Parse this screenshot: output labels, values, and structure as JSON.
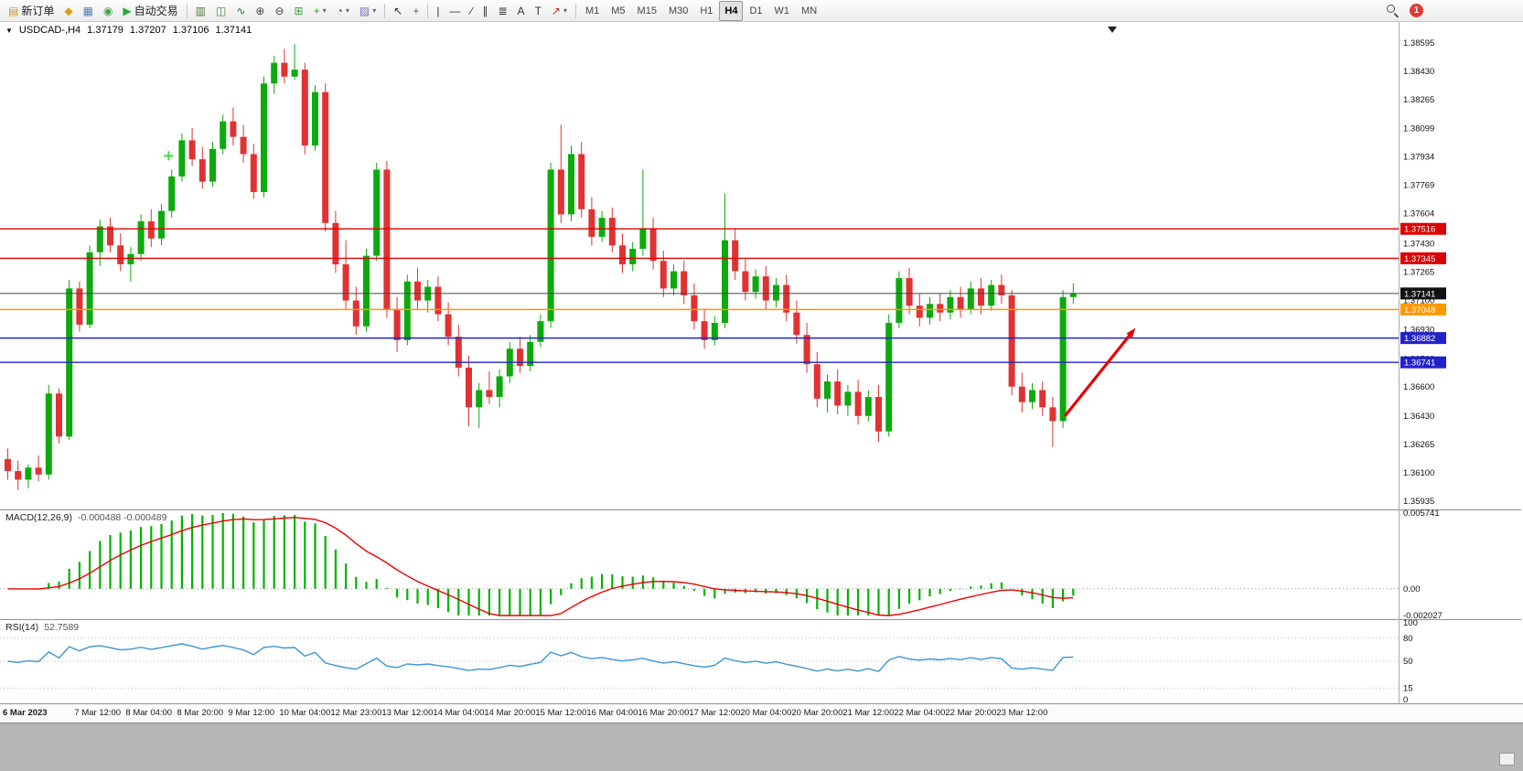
{
  "toolbar": {
    "notification_count": "1",
    "timeframes": [
      "M1",
      "M5",
      "M15",
      "M30",
      "H1",
      "H4",
      "D1",
      "W1",
      "MN"
    ],
    "active_timeframe": "H4",
    "items": [
      {
        "name": "new-order-button",
        "glyph": "▤",
        "glyph_color": "#c89830",
        "label": "新订单"
      },
      {
        "name": "market-watch-button",
        "glyph": "◆",
        "glyph_color": "#d4a017"
      },
      {
        "name": "data-window-button",
        "glyph": "▦",
        "glyph_color": "#5a7fb5"
      },
      {
        "name": "navigator-button",
        "glyph": "◉",
        "glyph_color": "#3fa33f"
      },
      {
        "name": "auto-trading-button",
        "glyph": "▶",
        "glyph_color": "#2fa82f",
        "label": "自动交易"
      },
      {
        "sep": true
      },
      {
        "name": "bar-chart-button",
        "glyph": "▥",
        "glyph_color": "#55772f"
      },
      {
        "name": "candlestick-chart-button",
        "glyph": "◫",
        "glyph_color": "#4c7a2f"
      },
      {
        "name": "line-chart-button",
        "glyph": "∿",
        "glyph_color": "#2f6f2f"
      },
      {
        "name": "zoom-in-button",
        "glyph": "⊕",
        "glyph_color": "#444444"
      },
      {
        "name": "zoom-out-button",
        "glyph": "⊖",
        "glyph_color": "#444444"
      },
      {
        "name": "tile-windows-button",
        "glyph": "⊞",
        "glyph_color": "#3fa33f"
      },
      {
        "name": "indicators-button",
        "glyph": "+",
        "glyph_color": "#2fa82f",
        "dropdown": true
      },
      {
        "name": "periods-button",
        "glyph": "◔",
        "glyph_color": "#445577",
        "dropdown": true
      },
      {
        "name": "templates-button",
        "glyph": "▨",
        "glyph_color": "#7a6fae",
        "dropdown": true
      },
      {
        "sep": true
      },
      {
        "name": "cursor-button",
        "glyph": "↖",
        "glyph_color": "#333333"
      },
      {
        "name": "crosshair-button",
        "glyph": "+",
        "glyph_color": "#666666"
      },
      {
        "sep": true
      },
      {
        "name": "vertical-line-button",
        "glyph": "|",
        "glyph_color": "#333333"
      },
      {
        "name": "horizontal-line-button",
        "glyph": "—",
        "glyph_color": "#333333"
      },
      {
        "name": "trendline-button",
        "glyph": "∕",
        "glyph_color": "#333333"
      },
      {
        "name": "channel-button",
        "glyph": "∥",
        "glyph_color": "#333333"
      },
      {
        "name": "fibonacci-button",
        "glyph": "≣",
        "glyph_color": "#333333"
      },
      {
        "name": "text-button",
        "glyph": "A",
        "glyph_color": "#333333"
      },
      {
        "name": "label-button",
        "glyph": "T",
        "glyph_color": "#333333"
      },
      {
        "name": "arrows-button",
        "glyph": "↗",
        "glyph_color": "#b03030",
        "dropdown": true
      },
      {
        "sep": true
      }
    ]
  },
  "chart": {
    "marker": "▼",
    "symbol_period": "USDCAD-,H4",
    "open": "1.37179",
    "high": "1.37207",
    "low": "1.37106",
    "close": "1.37141"
  },
  "chart_data": {
    "type": "candlestick",
    "symbol": "USDCAD-",
    "timeframe": "H4",
    "price_min": 1.35935,
    "price_max": 1.38595,
    "current_price": 1.37141,
    "current_price_label": "1.37141",
    "colors": {
      "up": "#0caa0c",
      "down": "#e03232"
    },
    "price_axis_labels": [
      "1.38595",
      "1.38430",
      "1.38265",
      "1.38099",
      "1.37934",
      "1.37769",
      "1.37604",
      "1.37430",
      "1.37265",
      "1.37100",
      "1.36930",
      "1.36760",
      "1.36600",
      "1.36430",
      "1.36265",
      "1.36100",
      "1.35935"
    ],
    "hlines": [
      {
        "price": 1.37516,
        "label": "1.37516",
        "color": "#dd0000",
        "type": "resistance"
      },
      {
        "price": 1.37345,
        "label": "1.37345",
        "color": "#dd0000",
        "type": "resistance"
      },
      {
        "price": 1.37048,
        "label": "1.37048",
        "color": "#ff9800",
        "type": "pivot"
      },
      {
        "price": 1.36882,
        "label": "1.36882",
        "color": "#2222cc",
        "type": "support"
      },
      {
        "price": 1.36741,
        "label": "1.36741",
        "color": "#2222cc",
        "type": "support"
      }
    ],
    "candles": [
      [
        1.3618,
        1.3624,
        1.3606,
        1.3611
      ],
      [
        1.3611,
        1.3617,
        1.36,
        1.3606
      ],
      [
        1.3606,
        1.3615,
        1.3601,
        1.3613
      ],
      [
        1.3613,
        1.362,
        1.3605,
        1.3609
      ],
      [
        1.3609,
        1.3661,
        1.3606,
        1.3656
      ],
      [
        1.3656,
        1.3659,
        1.3627,
        1.3631
      ],
      [
        1.3631,
        1.3722,
        1.3629,
        1.3717
      ],
      [
        1.3717,
        1.3721,
        1.3692,
        1.3696
      ],
      [
        1.3696,
        1.3742,
        1.3694,
        1.3738
      ],
      [
        1.3738,
        1.3757,
        1.373,
        1.3753
      ],
      [
        1.3753,
        1.3758,
        1.3738,
        1.3742
      ],
      [
        1.3742,
        1.3749,
        1.3727,
        1.3731
      ],
      [
        1.3731,
        1.3741,
        1.3721,
        1.3737
      ],
      [
        1.3737,
        1.376,
        1.3733,
        1.3756
      ],
      [
        1.3756,
        1.3763,
        1.3741,
        1.3746
      ],
      [
        1.3746,
        1.3766,
        1.3742,
        1.3762
      ],
      [
        1.3762,
        1.3786,
        1.3758,
        1.3782
      ],
      [
        1.3782,
        1.3807,
        1.3779,
        1.3803
      ],
      [
        1.3803,
        1.381,
        1.3788,
        1.3792
      ],
      [
        1.3792,
        1.3799,
        1.3775,
        1.3779
      ],
      [
        1.3779,
        1.3802,
        1.3776,
        1.3798
      ],
      [
        1.3798,
        1.3818,
        1.3795,
        1.3814
      ],
      [
        1.3814,
        1.3822,
        1.38,
        1.3805
      ],
      [
        1.3805,
        1.3812,
        1.379,
        1.3795
      ],
      [
        1.3795,
        1.3801,
        1.3769,
        1.3773
      ],
      [
        1.3773,
        1.384,
        1.377,
        1.3836
      ],
      [
        1.3836,
        1.3852,
        1.383,
        1.3848
      ],
      [
        1.3848,
        1.3856,
        1.3836,
        1.384
      ],
      [
        1.384,
        1.3859,
        1.3838,
        1.3844
      ],
      [
        1.3844,
        1.3848,
        1.3795,
        1.38
      ],
      [
        1.38,
        1.3835,
        1.3797,
        1.3831
      ],
      [
        1.3831,
        1.3836,
        1.375,
        1.3755
      ],
      [
        1.3755,
        1.3762,
        1.3726,
        1.3731
      ],
      [
        1.3731,
        1.3745,
        1.3705,
        1.371
      ],
      [
        1.371,
        1.3718,
        1.369,
        1.3695
      ],
      [
        1.3695,
        1.374,
        1.3692,
        1.3736
      ],
      [
        1.3736,
        1.379,
        1.3733,
        1.3786
      ],
      [
        1.3786,
        1.3791,
        1.37,
        1.3705
      ],
      [
        1.3705,
        1.3712,
        1.368,
        1.3687
      ],
      [
        1.3687,
        1.3725,
        1.3684,
        1.3721
      ],
      [
        1.3721,
        1.3729,
        1.3705,
        1.371
      ],
      [
        1.371,
        1.3722,
        1.3703,
        1.3718
      ],
      [
        1.3718,
        1.3724,
        1.3698,
        1.3702
      ],
      [
        1.3702,
        1.3709,
        1.3684,
        1.3689
      ],
      [
        1.3689,
        1.3696,
        1.3666,
        1.3671
      ],
      [
        1.3671,
        1.3678,
        1.3637,
        1.3648
      ],
      [
        1.3648,
        1.3662,
        1.3636,
        1.3658
      ],
      [
        1.3658,
        1.3669,
        1.365,
        1.3654
      ],
      [
        1.3654,
        1.367,
        1.3648,
        1.3666
      ],
      [
        1.3666,
        1.3686,
        1.3662,
        1.3682
      ],
      [
        1.3682,
        1.3689,
        1.3668,
        1.3672
      ],
      [
        1.3672,
        1.369,
        1.3669,
        1.3686
      ],
      [
        1.3686,
        1.3702,
        1.3683,
        1.3698
      ],
      [
        1.3698,
        1.379,
        1.3694,
        1.3786
      ],
      [
        1.3786,
        1.3812,
        1.3755,
        1.376
      ],
      [
        1.376,
        1.38,
        1.3756,
        1.3795
      ],
      [
        1.3795,
        1.3802,
        1.3758,
        1.3763
      ],
      [
        1.3763,
        1.377,
        1.3742,
        1.3747
      ],
      [
        1.3747,
        1.3762,
        1.3744,
        1.3758
      ],
      [
        1.3758,
        1.3764,
        1.3738,
        1.3742
      ],
      [
        1.3742,
        1.3749,
        1.3726,
        1.3731
      ],
      [
        1.3731,
        1.3744,
        1.3727,
        1.374
      ],
      [
        1.374,
        1.3786,
        1.3736,
        1.3752
      ],
      [
        1.3752,
        1.3758,
        1.3728,
        1.3733
      ],
      [
        1.3733,
        1.3739,
        1.3712,
        1.3717
      ],
      [
        1.3717,
        1.3731,
        1.3713,
        1.3727
      ],
      [
        1.3727,
        1.3733,
        1.3708,
        1.3713
      ],
      [
        1.3713,
        1.372,
        1.3693,
        1.3698
      ],
      [
        1.3698,
        1.3705,
        1.3682,
        1.3687
      ],
      [
        1.3687,
        1.3701,
        1.3684,
        1.3697
      ],
      [
        1.3697,
        1.3772,
        1.3694,
        1.3745
      ],
      [
        1.3745,
        1.3752,
        1.3722,
        1.3727
      ],
      [
        1.3727,
        1.3734,
        1.371,
        1.3715
      ],
      [
        1.3715,
        1.3728,
        1.3711,
        1.3724
      ],
      [
        1.3724,
        1.373,
        1.3705,
        1.371
      ],
      [
        1.371,
        1.3723,
        1.3706,
        1.3719
      ],
      [
        1.3719,
        1.3725,
        1.3698,
        1.3703
      ],
      [
        1.3703,
        1.371,
        1.3685,
        1.369
      ],
      [
        1.369,
        1.3697,
        1.3668,
        1.3673
      ],
      [
        1.3673,
        1.368,
        1.3648,
        1.3653
      ],
      [
        1.3653,
        1.3667,
        1.3645,
        1.3663
      ],
      [
        1.3663,
        1.367,
        1.3644,
        1.3649
      ],
      [
        1.3649,
        1.3661,
        1.3643,
        1.3657
      ],
      [
        1.3657,
        1.3664,
        1.3638,
        1.3643
      ],
      [
        1.3643,
        1.3658,
        1.364,
        1.3654
      ],
      [
        1.3654,
        1.3661,
        1.3628,
        1.3634
      ],
      [
        1.3634,
        1.3702,
        1.3631,
        1.3697
      ],
      [
        1.3697,
        1.3727,
        1.3694,
        1.3723
      ],
      [
        1.3723,
        1.3729,
        1.3702,
        1.3707
      ],
      [
        1.3707,
        1.3714,
        1.3695,
        1.37
      ],
      [
        1.37,
        1.3712,
        1.3696,
        1.3708
      ],
      [
        1.3708,
        1.3714,
        1.3698,
        1.3703
      ],
      [
        1.3703,
        1.3716,
        1.3699,
        1.3712
      ],
      [
        1.3712,
        1.3718,
        1.37,
        1.3705
      ],
      [
        1.3705,
        1.3721,
        1.3702,
        1.3717
      ],
      [
        1.3717,
        1.3723,
        1.3702,
        1.3707
      ],
      [
        1.3707,
        1.3722,
        1.3704,
        1.3719
      ],
      [
        1.3719,
        1.3725,
        1.3708,
        1.3713
      ],
      [
        1.3713,
        1.3716,
        1.3655,
        1.366
      ],
      [
        1.366,
        1.3668,
        1.3645,
        1.3651
      ],
      [
        1.3651,
        1.3662,
        1.3647,
        1.3658
      ],
      [
        1.3658,
        1.3663,
        1.3643,
        1.3648
      ],
      [
        1.3648,
        1.3654,
        1.3625,
        1.364
      ],
      [
        1.364,
        1.3716,
        1.3636,
        1.3712
      ],
      [
        1.3712,
        1.372,
        1.3708,
        1.3714
      ]
    ],
    "time_labels": [
      {
        "index": 0,
        "text": "6 Mar 2023"
      },
      {
        "index": 7,
        "text": "7 Mar 12:00"
      },
      {
        "index": 12,
        "text": "8 Mar 04:00"
      },
      {
        "index": 17,
        "text": "8 Mar 20:00"
      },
      {
        "index": 22,
        "text": "9 Mar 12:00"
      },
      {
        "index": 27,
        "text": "10 Mar 04:00"
      },
      {
        "index": 32,
        "text": "12 Mar 23:00"
      },
      {
        "index": 37,
        "text": "13 Mar 12:00"
      },
      {
        "index": 42,
        "text": "14 Mar 04:00"
      },
      {
        "index": 47,
        "text": "14 Mar 20:00"
      },
      {
        "index": 52,
        "text": "15 Mar 12:00"
      },
      {
        "index": 57,
        "text": "16 Mar 04:00"
      },
      {
        "index": 62,
        "text": "16 Mar 20:00"
      },
      {
        "index": 67,
        "text": "17 Mar 12:00"
      },
      {
        "index": 72,
        "text": "20 Mar 04:00"
      },
      {
        "index": 77,
        "text": "20 Mar 20:00"
      },
      {
        "index": 82,
        "text": "21 Mar 12:00"
      },
      {
        "index": 87,
        "text": "22 Mar 04:00"
      },
      {
        "index": 92,
        "text": "22 Mar 20:00"
      },
      {
        "index": 97,
        "text": "23 Mar 12:00"
      }
    ],
    "annotations": [
      {
        "type": "arrow",
        "from": {
          "index": 103.2,
          "price": 1.3643
        },
        "to": {
          "index": 109.8,
          "price": 1.3692
        },
        "color": "#e80000"
      },
      {
        "type": "cross",
        "index": 15.7,
        "price": 1.3794,
        "color": "#3ddc3d"
      }
    ],
    "macd": {
      "label": "MACD(12,26,9)",
      "values_text": "-0.000488 -0.000489",
      "params": {
        "fast": 12,
        "slow": 26,
        "signal": 9
      },
      "axis_labels": [
        "0.005741",
        "0.00",
        "-0.002027"
      ],
      "axis_max": 0.005741,
      "axis_min": -0.002027,
      "histogram_color": "#00b400",
      "signal_color": "#ee0000"
    },
    "rsi": {
      "label": "RSI(14)",
      "value_text": "52.7589",
      "period": 14,
      "levels": [
        80,
        50,
        15
      ],
      "axis_labels": [
        "100",
        "80",
        "50",
        "15",
        "0"
      ],
      "line_color": "#3c96d2"
    }
  }
}
